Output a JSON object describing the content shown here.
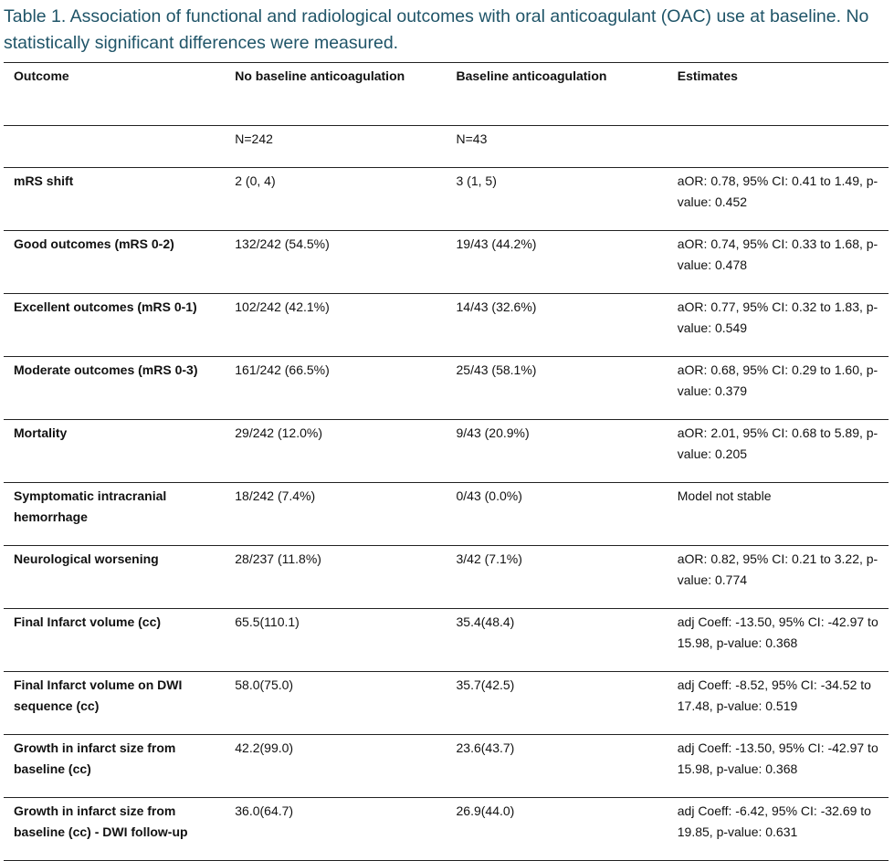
{
  "title": "Table 1. Association of functional and radiological outcomes with oral anticoagulant (OAC) use at baseline. No statistically significant differences were measured.",
  "headers": [
    "Outcome",
    "No baseline anticoagulation",
    "Baseline anticoagulation",
    "Estimates"
  ],
  "n_row": [
    "",
    "N=242",
    "N=43",
    ""
  ],
  "rows": [
    [
      "mRS shift",
      "2 (0, 4)",
      "3 (1, 5)",
      "aOR: 0.78, 95% CI: 0.41 to 1.49, p-value: 0.452"
    ],
    [
      "Good outcomes (mRS 0-2)",
      "132/242 (54.5%)",
      "19/43 (44.2%)",
      "aOR: 0.74, 95% CI: 0.33 to 1.68, p-value: 0.478"
    ],
    [
      "Excellent outcomes (mRS 0-1)",
      "102/242 (42.1%)",
      "14/43 (32.6%)",
      "aOR: 0.77, 95% CI: 0.32 to 1.83, p-value: 0.549"
    ],
    [
      "Moderate outcomes (mRS 0-3)",
      "161/242 (66.5%)",
      "25/43 (58.1%)",
      "aOR: 0.68, 95% CI: 0.29 to 1.60, p-value: 0.379"
    ],
    [
      "Mortality",
      "29/242 (12.0%)",
      "9/43 (20.9%)",
      "aOR: 2.01, 95% CI: 0.68 to 5.89, p-value: 0.205"
    ],
    [
      "Symptomatic intracranial hemorrhage",
      "18/242 (7.4%)",
      "0/43 (0.0%)",
      "Model not stable"
    ],
    [
      "Neurological worsening",
      "28/237 (11.8%)",
      "3/42 (7.1%)",
      "aOR: 0.82, 95% CI: 0.21 to 3.22, p-value: 0.774"
    ],
    [
      "Final Infarct volume (cc)",
      "65.5(110.1)",
      "35.4(48.4)",
      "adj Coeff: -13.50, 95% CI: -42.97 to 15.98, p-value: 0.368"
    ],
    [
      "Final Infarct volume on DWI sequence (cc)",
      "58.0(75.0)",
      "35.7(42.5)",
      "adj Coeff: -8.52, 95% CI: -34.52 to 17.48, p-value: 0.519"
    ],
    [
      "Growth in infarct size from baseline (cc)",
      "42.2(99.0)",
      "23.6(43.7)",
      "adj Coeff: -13.50, 95% CI: -42.97 to 15.98, p-value: 0.368"
    ],
    [
      "Growth in infarct size from baseline (cc) - DWI follow-up",
      "36.0(64.7)",
      "26.9(44.0)",
      "adj Coeff: -6.42, 95% CI: -32.69 to 19.85, p-value: 0.631"
    ]
  ]
}
